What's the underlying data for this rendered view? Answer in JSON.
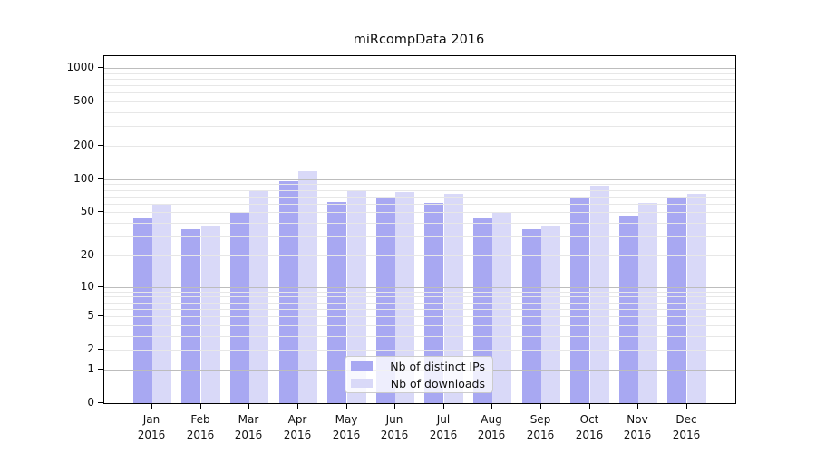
{
  "title": "miRcompData 2016",
  "chart_data": {
    "type": "bar",
    "title": "miRcompData 2016",
    "scale": "log10(value+1) pseudo-log y axis",
    "categories": [
      "Jan",
      "Feb",
      "Mar",
      "Apr",
      "May",
      "Jun",
      "Jul",
      "Aug",
      "Sep",
      "Oct",
      "Nov",
      "Dec"
    ],
    "year": "2016",
    "series": [
      {
        "name": "Nb of distinct IPs",
        "color": "#a8a8f2",
        "values": [
          44,
          35,
          50,
          96,
          62,
          70,
          61,
          44,
          35,
          67,
          47,
          67
        ]
      },
      {
        "name": "Nb of downloads",
        "color": "#d9d9f8",
        "values": [
          60,
          38,
          78,
          117,
          79,
          77,
          73,
          50,
          38,
          87,
          61,
          73
        ]
      }
    ],
    "y_ticks": [
      0,
      1,
      2,
      5,
      10,
      20,
      50,
      100,
      200,
      500,
      1000
    ],
    "major_grid_values": [
      1,
      10,
      100,
      1000
    ],
    "ylim": [
      0,
      1274
    ],
    "grid": true,
    "legend_position": "lower-center-inside"
  },
  "colors": {
    "bar_dark": "#a8a8f2",
    "bar_light": "#d9d9f8",
    "grid_major": "#bdbdbd",
    "grid_minor": "#e7e7e7",
    "spine": "#000000",
    "text": "#111111",
    "legend_border": "#cccccc"
  }
}
